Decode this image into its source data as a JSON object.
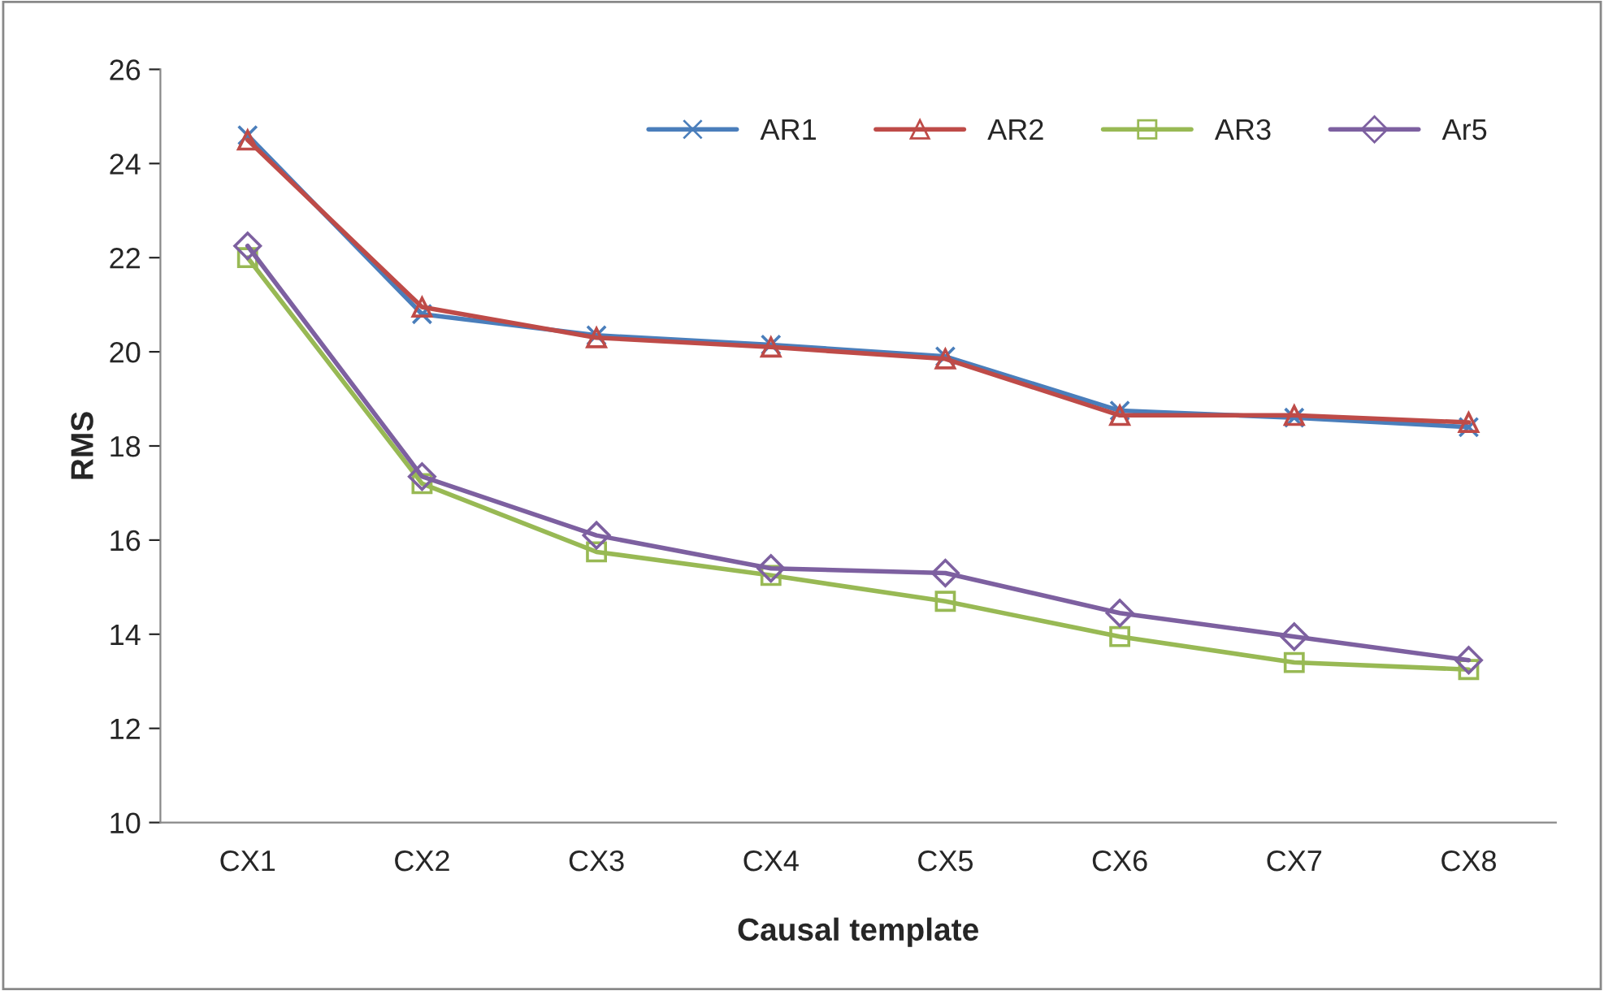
{
  "chart_data": {
    "type": "line",
    "xlabel": "Causal template",
    "ylabel": "RMS",
    "categories": [
      "CX1",
      "CX2",
      "CX3",
      "CX4",
      "CX5",
      "CX6",
      "CX7",
      "CX8"
    ],
    "series": [
      {
        "name": "AR1",
        "color": "#4a7ebb",
        "marker": "cross",
        "values": [
          24.6,
          20.8,
          20.35,
          20.15,
          19.9,
          18.75,
          18.6,
          18.4
        ]
      },
      {
        "name": "AR2",
        "color": "#be4b48",
        "marker": "triangle",
        "values": [
          24.5,
          20.95,
          20.3,
          20.1,
          19.85,
          18.65,
          18.65,
          18.5
        ]
      },
      {
        "name": "AR3",
        "color": "#98b954",
        "marker": "square",
        "values": [
          22.0,
          17.2,
          15.75,
          15.25,
          14.7,
          13.95,
          13.4,
          13.25
        ]
      },
      {
        "name": "Ar5",
        "color": "#7d60a0",
        "marker": "diamond",
        "values": [
          22.25,
          17.35,
          16.1,
          15.4,
          15.3,
          14.45,
          13.95,
          13.45
        ]
      }
    ],
    "ylim": [
      10,
      26
    ],
    "yticks": [
      10,
      12,
      14,
      16,
      18,
      20,
      22,
      24,
      26
    ],
    "grid": false,
    "legend": "top right",
    "line_style": "solid"
  }
}
